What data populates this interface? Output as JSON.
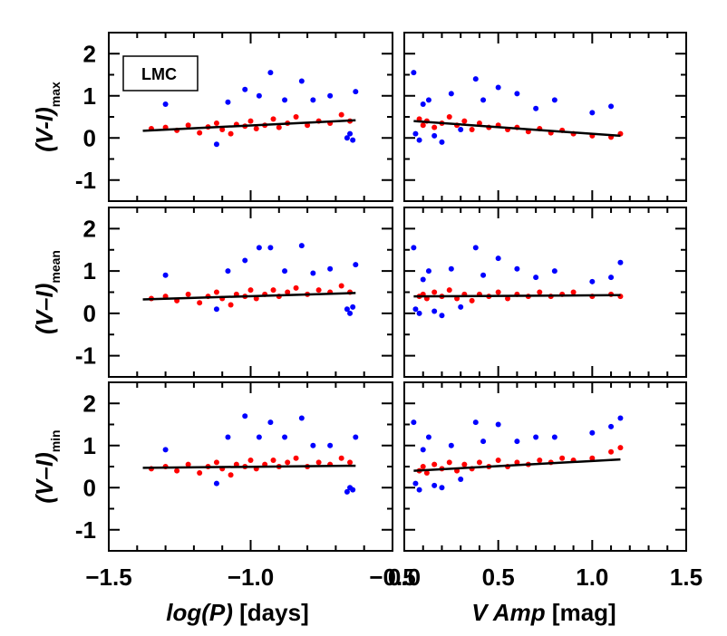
{
  "colors": {
    "red": "#ff0000",
    "blue": "#0000ff",
    "fit": "#000000",
    "frame": "#000000"
  },
  "legend": {
    "label": "LMC"
  },
  "chart_data": [
    {
      "type": "scatter",
      "id": "max_logp",
      "ylabel_main": "(V-I)",
      "ylabel_sub": "max",
      "xlim": [
        -1.5,
        -0.5
      ],
      "ylim": [
        -1.5,
        2.5
      ],
      "series": [
        {
          "color": "red",
          "points": [
            [
              -1.35,
              0.22
            ],
            [
              -1.3,
              0.25
            ],
            [
              -1.26,
              0.18
            ],
            [
              -1.22,
              0.3
            ],
            [
              -1.18,
              0.12
            ],
            [
              -1.15,
              0.26
            ],
            [
              -1.12,
              0.35
            ],
            [
              -1.1,
              0.2
            ],
            [
              -1.07,
              0.1
            ],
            [
              -1.05,
              0.32
            ],
            [
              -1.02,
              0.28
            ],
            [
              -1.0,
              0.4
            ],
            [
              -0.98,
              0.22
            ],
            [
              -0.95,
              0.3
            ],
            [
              -0.92,
              0.45
            ],
            [
              -0.9,
              0.25
            ],
            [
              -0.87,
              0.35
            ],
            [
              -0.84,
              0.5
            ],
            [
              -0.8,
              0.3
            ],
            [
              -0.76,
              0.4
            ],
            [
              -0.72,
              0.35
            ],
            [
              -0.68,
              0.55
            ],
            [
              -0.65,
              0.4
            ]
          ]
        },
        {
          "color": "blue",
          "points": [
            [
              -1.3,
              0.8
            ],
            [
              -1.12,
              -0.15
            ],
            [
              -1.08,
              0.85
            ],
            [
              -1.02,
              1.15
            ],
            [
              -0.97,
              1.0
            ],
            [
              -0.93,
              1.55
            ],
            [
              -0.88,
              0.9
            ],
            [
              -0.82,
              1.35
            ],
            [
              -0.78,
              0.9
            ],
            [
              -0.72,
              1.0
            ],
            [
              -0.66,
              0.0
            ],
            [
              -0.65,
              0.1
            ],
            [
              -0.64,
              -0.05
            ],
            [
              -0.63,
              1.1
            ]
          ]
        }
      ],
      "fit": [
        [
          -1.38,
          0.17
        ],
        [
          -0.63,
          0.42
        ]
      ]
    },
    {
      "type": "scatter",
      "id": "max_amp",
      "xlim": [
        0.0,
        1.5
      ],
      "ylim": [
        -1.5,
        2.5
      ],
      "series": [
        {
          "color": "red",
          "points": [
            [
              0.08,
              0.45
            ],
            [
              0.1,
              0.3
            ],
            [
              0.12,
              0.4
            ],
            [
              0.16,
              0.25
            ],
            [
              0.2,
              0.35
            ],
            [
              0.24,
              0.5
            ],
            [
              0.28,
              0.3
            ],
            [
              0.32,
              0.4
            ],
            [
              0.36,
              0.2
            ],
            [
              0.4,
              0.35
            ],
            [
              0.45,
              0.25
            ],
            [
              0.5,
              0.3
            ],
            [
              0.55,
              0.2
            ],
            [
              0.6,
              0.25
            ],
            [
              0.66,
              0.15
            ],
            [
              0.72,
              0.22
            ],
            [
              0.78,
              0.12
            ],
            [
              0.84,
              0.18
            ],
            [
              0.9,
              0.1
            ],
            [
              1.0,
              0.05
            ],
            [
              1.1,
              0.02
            ],
            [
              1.15,
              0.1
            ]
          ]
        },
        {
          "color": "blue",
          "points": [
            [
              0.05,
              1.55
            ],
            [
              0.06,
              0.1
            ],
            [
              0.08,
              -0.05
            ],
            [
              0.1,
              0.8
            ],
            [
              0.13,
              0.9
            ],
            [
              0.16,
              0.05
            ],
            [
              0.2,
              -0.1
            ],
            [
              0.25,
              1.05
            ],
            [
              0.3,
              0.2
            ],
            [
              0.38,
              1.4
            ],
            [
              0.42,
              0.9
            ],
            [
              0.5,
              1.2
            ],
            [
              0.6,
              1.05
            ],
            [
              0.7,
              0.7
            ],
            [
              0.8,
              0.9
            ],
            [
              1.0,
              0.6
            ],
            [
              1.1,
              0.75
            ]
          ]
        }
      ],
      "fit": [
        [
          0.05,
          0.4
        ],
        [
          1.15,
          0.05
        ]
      ]
    },
    {
      "type": "scatter",
      "id": "mean_logp",
      "ylabel_main": "(V–I)",
      "ylabel_sub": "mean",
      "xlim": [
        -1.5,
        -0.5
      ],
      "ylim": [
        -1.5,
        2.5
      ],
      "series": [
        {
          "color": "red",
          "points": [
            [
              -1.35,
              0.35
            ],
            [
              -1.3,
              0.4
            ],
            [
              -1.26,
              0.3
            ],
            [
              -1.22,
              0.45
            ],
            [
              -1.18,
              0.25
            ],
            [
              -1.15,
              0.4
            ],
            [
              -1.12,
              0.5
            ],
            [
              -1.1,
              0.35
            ],
            [
              -1.07,
              0.2
            ],
            [
              -1.05,
              0.45
            ],
            [
              -1.02,
              0.4
            ],
            [
              -1.0,
              0.55
            ],
            [
              -0.98,
              0.35
            ],
            [
              -0.95,
              0.45
            ],
            [
              -0.92,
              0.55
            ],
            [
              -0.9,
              0.4
            ],
            [
              -0.87,
              0.5
            ],
            [
              -0.84,
              0.6
            ],
            [
              -0.8,
              0.45
            ],
            [
              -0.76,
              0.55
            ],
            [
              -0.72,
              0.5
            ],
            [
              -0.68,
              0.65
            ],
            [
              -0.65,
              0.5
            ]
          ]
        },
        {
          "color": "blue",
          "points": [
            [
              -1.3,
              0.9
            ],
            [
              -1.12,
              0.1
            ],
            [
              -1.08,
              1.0
            ],
            [
              -1.02,
              1.25
            ],
            [
              -0.97,
              1.55
            ],
            [
              -0.93,
              1.55
            ],
            [
              -0.88,
              1.0
            ],
            [
              -0.82,
              1.6
            ],
            [
              -0.78,
              0.95
            ],
            [
              -0.72,
              1.05
            ],
            [
              -0.66,
              0.1
            ],
            [
              -0.65,
              0.0
            ],
            [
              -0.64,
              0.15
            ],
            [
              -0.63,
              1.15
            ]
          ]
        }
      ],
      "fit": [
        [
          -1.38,
          0.33
        ],
        [
          -0.63,
          0.48
        ]
      ]
    },
    {
      "type": "scatter",
      "id": "mean_amp",
      "xlim": [
        0.0,
        1.5
      ],
      "ylim": [
        -1.5,
        2.5
      ],
      "series": [
        {
          "color": "red",
          "points": [
            [
              0.08,
              0.4
            ],
            [
              0.1,
              0.45
            ],
            [
              0.12,
              0.35
            ],
            [
              0.16,
              0.5
            ],
            [
              0.2,
              0.4
            ],
            [
              0.24,
              0.55
            ],
            [
              0.28,
              0.35
            ],
            [
              0.32,
              0.45
            ],
            [
              0.36,
              0.3
            ],
            [
              0.4,
              0.45
            ],
            [
              0.45,
              0.4
            ],
            [
              0.5,
              0.5
            ],
            [
              0.55,
              0.35
            ],
            [
              0.6,
              0.45
            ],
            [
              0.66,
              0.4
            ],
            [
              0.72,
              0.5
            ],
            [
              0.78,
              0.4
            ],
            [
              0.84,
              0.45
            ],
            [
              0.9,
              0.5
            ],
            [
              1.0,
              0.4
            ],
            [
              1.1,
              0.45
            ],
            [
              1.15,
              0.4
            ]
          ]
        },
        {
          "color": "blue",
          "points": [
            [
              0.05,
              1.55
            ],
            [
              0.06,
              0.1
            ],
            [
              0.08,
              0.0
            ],
            [
              0.1,
              0.8
            ],
            [
              0.13,
              1.0
            ],
            [
              0.16,
              0.05
            ],
            [
              0.2,
              -0.05
            ],
            [
              0.25,
              1.05
            ],
            [
              0.3,
              0.15
            ],
            [
              0.38,
              1.55
            ],
            [
              0.42,
              0.9
            ],
            [
              0.5,
              1.3
            ],
            [
              0.6,
              1.05
            ],
            [
              0.7,
              0.85
            ],
            [
              0.8,
              1.0
            ],
            [
              1.0,
              0.75
            ],
            [
              1.1,
              0.85
            ],
            [
              1.15,
              1.2
            ]
          ]
        }
      ],
      "fit": [
        [
          0.05,
          0.4
        ],
        [
          1.15,
          0.43
        ]
      ]
    },
    {
      "type": "scatter",
      "id": "min_logp",
      "ylabel_main": "(V–I)",
      "ylabel_sub": "min",
      "xlim": [
        -1.5,
        -0.5
      ],
      "ylim": [
        -1.5,
        2.5
      ],
      "series": [
        {
          "color": "red",
          "points": [
            [
              -1.35,
              0.45
            ],
            [
              -1.3,
              0.5
            ],
            [
              -1.26,
              0.4
            ],
            [
              -1.22,
              0.55
            ],
            [
              -1.18,
              0.35
            ],
            [
              -1.15,
              0.5
            ],
            [
              -1.12,
              0.6
            ],
            [
              -1.1,
              0.45
            ],
            [
              -1.07,
              0.3
            ],
            [
              -1.05,
              0.55
            ],
            [
              -1.02,
              0.5
            ],
            [
              -1.0,
              0.65
            ],
            [
              -0.98,
              0.45
            ],
            [
              -0.95,
              0.55
            ],
            [
              -0.92,
              0.65
            ],
            [
              -0.9,
              0.5
            ],
            [
              -0.87,
              0.6
            ],
            [
              -0.84,
              0.7
            ],
            [
              -0.8,
              0.5
            ],
            [
              -0.76,
              0.6
            ],
            [
              -0.72,
              0.55
            ],
            [
              -0.68,
              0.7
            ],
            [
              -0.65,
              0.6
            ]
          ]
        },
        {
          "color": "blue",
          "points": [
            [
              -1.3,
              0.9
            ],
            [
              -1.12,
              0.1
            ],
            [
              -1.08,
              1.2
            ],
            [
              -1.02,
              1.7
            ],
            [
              -0.97,
              1.2
            ],
            [
              -0.93,
              1.55
            ],
            [
              -0.88,
              1.2
            ],
            [
              -0.82,
              1.65
            ],
            [
              -0.78,
              1.0
            ],
            [
              -0.72,
              1.0
            ],
            [
              -0.66,
              -0.1
            ],
            [
              -0.65,
              0.0
            ],
            [
              -0.64,
              -0.05
            ],
            [
              -0.63,
              1.2
            ]
          ]
        }
      ],
      "fit": [
        [
          -1.38,
          0.47
        ],
        [
          -0.63,
          0.52
        ]
      ]
    },
    {
      "type": "scatter",
      "id": "min_amp",
      "xlim": [
        0.0,
        1.5
      ],
      "ylim": [
        -1.5,
        2.5
      ],
      "series": [
        {
          "color": "red",
          "points": [
            [
              0.08,
              0.4
            ],
            [
              0.1,
              0.5
            ],
            [
              0.12,
              0.35
            ],
            [
              0.16,
              0.55
            ],
            [
              0.2,
              0.45
            ],
            [
              0.24,
              0.6
            ],
            [
              0.28,
              0.4
            ],
            [
              0.32,
              0.55
            ],
            [
              0.36,
              0.45
            ],
            [
              0.4,
              0.6
            ],
            [
              0.45,
              0.5
            ],
            [
              0.5,
              0.65
            ],
            [
              0.55,
              0.5
            ],
            [
              0.6,
              0.6
            ],
            [
              0.66,
              0.55
            ],
            [
              0.72,
              0.65
            ],
            [
              0.78,
              0.6
            ],
            [
              0.84,
              0.7
            ],
            [
              0.9,
              0.65
            ],
            [
              1.0,
              0.7
            ],
            [
              1.1,
              0.85
            ],
            [
              1.15,
              0.95
            ]
          ]
        },
        {
          "color": "blue",
          "points": [
            [
              0.05,
              1.55
            ],
            [
              0.06,
              0.1
            ],
            [
              0.08,
              -0.05
            ],
            [
              0.1,
              0.9
            ],
            [
              0.13,
              1.2
            ],
            [
              0.16,
              0.05
            ],
            [
              0.2,
              0.0
            ],
            [
              0.25,
              1.0
            ],
            [
              0.3,
              0.2
            ],
            [
              0.38,
              1.55
            ],
            [
              0.42,
              1.1
            ],
            [
              0.5,
              1.5
            ],
            [
              0.6,
              1.1
            ],
            [
              0.7,
              1.2
            ],
            [
              0.8,
              1.2
            ],
            [
              1.0,
              1.3
            ],
            [
              1.1,
              1.45
            ],
            [
              1.15,
              1.65
            ]
          ]
        }
      ],
      "fit": [
        [
          0.05,
          0.4
        ],
        [
          1.15,
          0.67
        ]
      ]
    }
  ],
  "axes": {
    "y_ticks": [
      "2",
      "1",
      "0",
      "-1"
    ],
    "y_tick_values": [
      2,
      1,
      0,
      -1
    ],
    "x_ticks_left": [
      "−1.5",
      "−1.0",
      "−0.5"
    ],
    "x_tick_values_left": [
      -1.5,
      -1.0,
      -0.5
    ],
    "x_ticks_right": [
      "0.0",
      "0.5",
      "1.0",
      "1.5"
    ],
    "x_tick_values_right": [
      0.0,
      0.5,
      1.0,
      1.5
    ],
    "xlabel_left_italic": "log(P)",
    "xlabel_left_rest": " [days]",
    "xlabel_right_italic": "V Amp",
    "xlabel_right_rest": " [mag]"
  }
}
